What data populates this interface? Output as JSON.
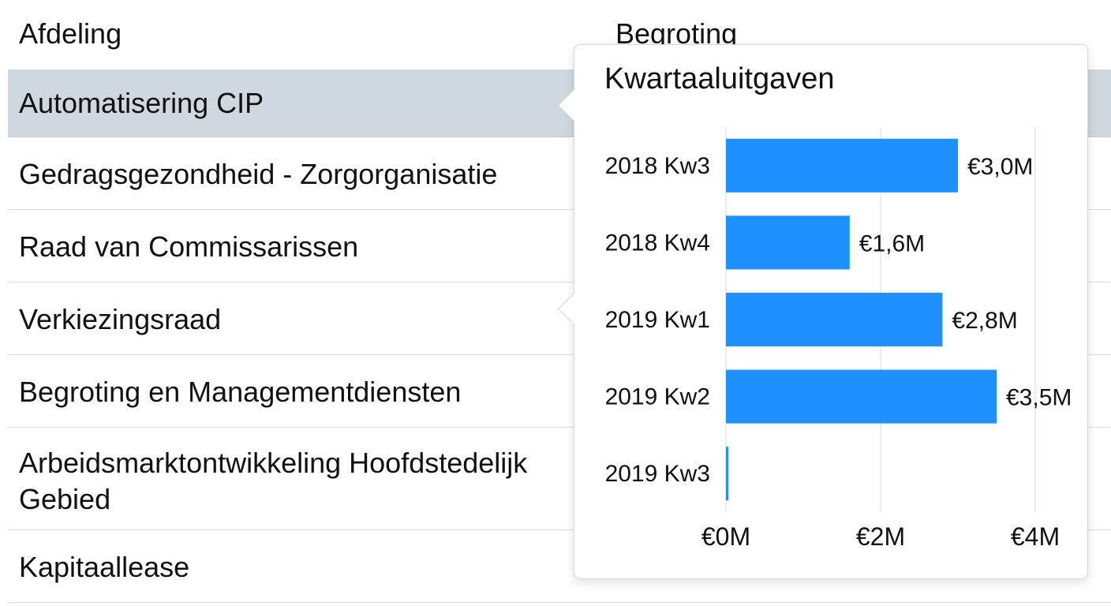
{
  "table": {
    "columns": {
      "department": "Afdeling",
      "budget": "Begroting"
    },
    "rows": [
      {
        "department": "Automatisering CIP",
        "budget": "",
        "selected": true
      },
      {
        "department": "Gedragsgezondheid - Zorgorganisatie",
        "budget": ""
      },
      {
        "department": "Raad van Commissarissen",
        "budget": ""
      },
      {
        "department": "Verkiezingsraad",
        "budget": ""
      },
      {
        "department": "Begroting en Managementdiensten",
        "budget": ""
      },
      {
        "department": "Arbeidsmarktontwikkeling Hoofdstedelijk Gebied",
        "budget": ""
      },
      {
        "department": "Kapitaallease",
        "budget": ""
      }
    ]
  },
  "popover": {
    "title": "Kwartaaluitgaven"
  },
  "chart_data": {
    "type": "bar",
    "orientation": "horizontal",
    "categories": [
      "2018 Kw3",
      "2018 Kw4",
      "2019 Kw1",
      "2019 Kw2",
      "2019 Kw3"
    ],
    "values": [
      3.0,
      1.6,
      2.8,
      3.5,
      0.02
    ],
    "value_labels": [
      "€3,0M",
      "€1,6M",
      "€2,8M",
      "€3,5M",
      ""
    ],
    "xlim": [
      0,
      4
    ],
    "x_ticks": [
      0,
      2,
      4
    ],
    "x_tick_labels": [
      "€0M",
      "€2M",
      "€4M"
    ],
    "grid": true,
    "bar_color": "#1e90ff",
    "legend": "none"
  },
  "colors": {
    "selected_row": "#cfd8de",
    "divider": "#dcdcdc"
  }
}
